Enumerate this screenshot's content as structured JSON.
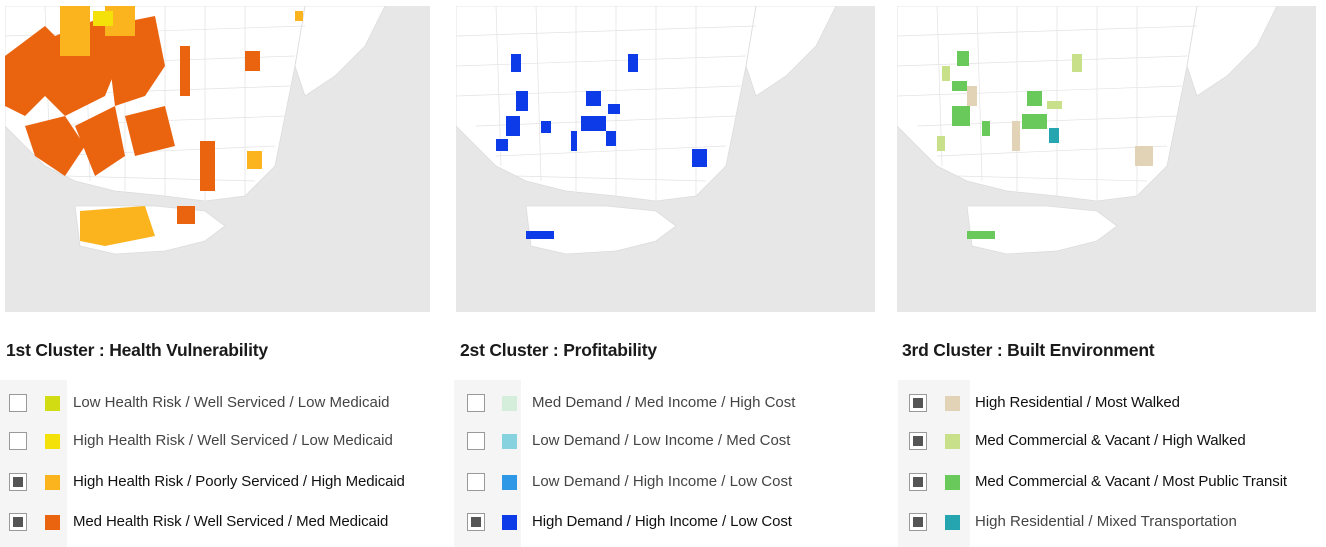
{
  "panels": [
    {
      "title": "1st Cluster : Health Vulnerability",
      "legend": [
        {
          "label": "Low Health Risk / Well Serviced / Low Medicaid",
          "color": "#d2dc13",
          "checked": false,
          "emphasis": false
        },
        {
          "label": "High Health Risk / Well Serviced / Low Medicaid",
          "color": "#f5e10a",
          "checked": false,
          "emphasis": false
        },
        {
          "label": "High Health Risk / Poorly Serviced / High Medicaid",
          "color": "#fbb41e",
          "checked": true,
          "emphasis": true
        },
        {
          "label": "Med Health Risk / Well Serviced / Med Medicaid",
          "color": "#ea6410",
          "checked": true,
          "emphasis": true
        }
      ]
    },
    {
      "title": "2st Cluster : Profitability",
      "legend": [
        {
          "label": "Med Demand / Med Income / High Cost",
          "color": "#d5eedb",
          "checked": false,
          "emphasis": false
        },
        {
          "label": "Low Demand / Low Income / Med Cost",
          "color": "#86d2de",
          "checked": false,
          "emphasis": false
        },
        {
          "label": "Low Demand / High Income / Low Cost",
          "color": "#2f98e6",
          "checked": false,
          "emphasis": false
        },
        {
          "label": "High Demand / High Income / Low Cost",
          "color": "#0d3be8",
          "checked": true,
          "emphasis": true
        }
      ]
    },
    {
      "title": "3rd Cluster : Built Environment",
      "legend": [
        {
          "label": "High Residential / Most Walked",
          "color": "#e2d2b6",
          "checked": true,
          "emphasis": true
        },
        {
          "label": "Med Commercial & Vacant / High Walked",
          "color": "#c9e08a",
          "checked": true,
          "emphasis": true
        },
        {
          "label": "Med Commercial & Vacant / Most Public Transit",
          "color": "#69c95a",
          "checked": true,
          "emphasis": true
        },
        {
          "label": "High Residential / Mixed Transportation",
          "color": "#24a5b0",
          "checked": true,
          "emphasis": false
        }
      ]
    }
  ]
}
